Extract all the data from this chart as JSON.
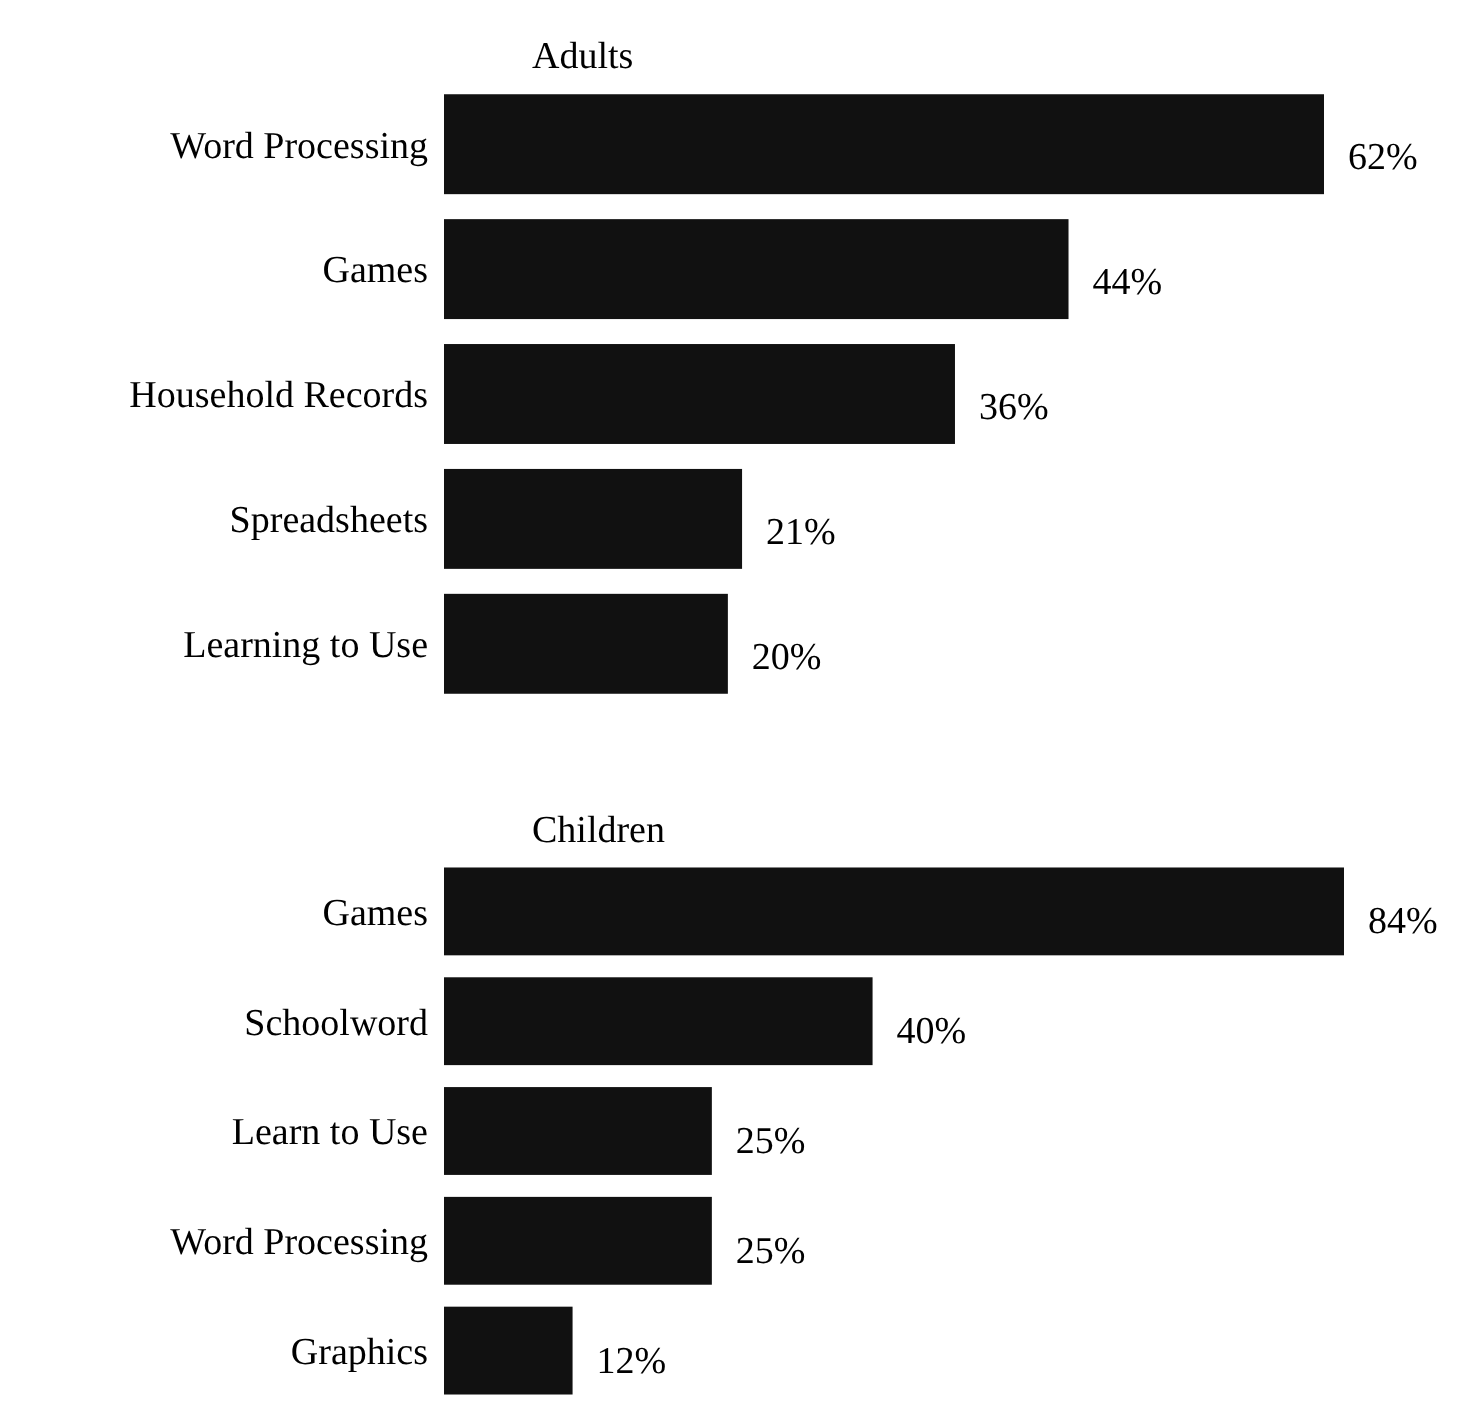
{
  "chart_data": [
    {
      "type": "bar",
      "orientation": "horizontal",
      "title": "Adults",
      "categories": [
        "Word Processing",
        "Games",
        "Household Records",
        "Spreadsheets",
        "Learning to Use"
      ],
      "values": [
        62,
        44,
        36,
        21,
        20
      ],
      "color": "#111111",
      "value_labels": [
        "62%",
        "44%",
        "36%",
        "21%",
        "20%"
      ]
    },
    {
      "type": "bar",
      "orientation": "horizontal",
      "title": "Children",
      "categories": [
        "Games",
        "Schoolword",
        "Learn to Use",
        "Word Processing",
        "Graphics"
      ],
      "values": [
        84,
        40,
        25,
        25,
        12
      ],
      "color": "#111111",
      "value_labels": [
        "84%",
        "40%",
        "25%",
        "25%",
        "12%"
      ]
    }
  ]
}
